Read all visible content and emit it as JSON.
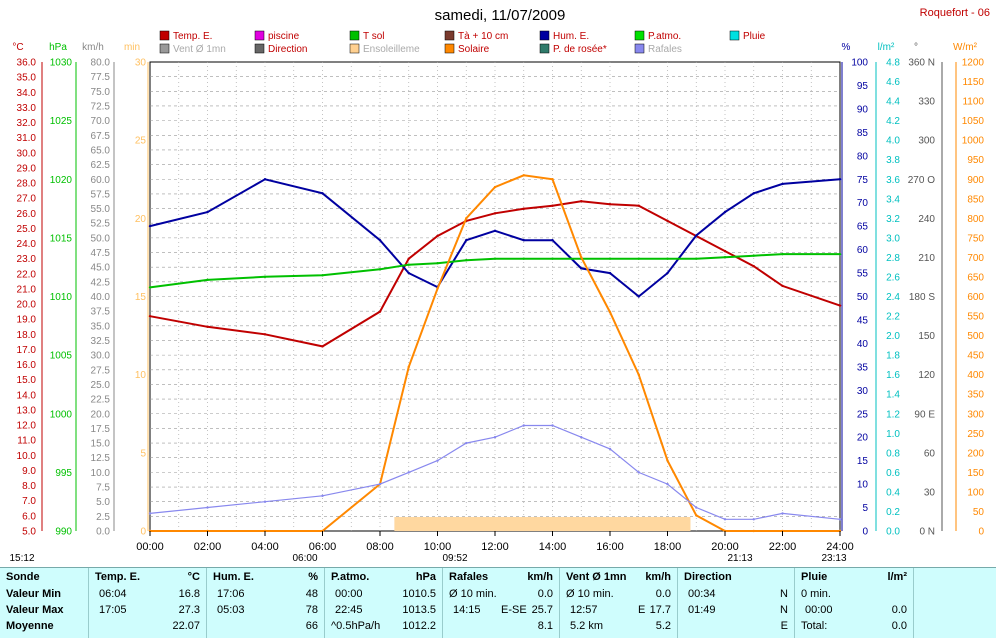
{
  "title": "samedi, 11/07/2009",
  "station": "Roquefort - 06",
  "legend": [
    {
      "label": "Temp. E.",
      "color": "#c00000"
    },
    {
      "label": "piscine",
      "color": "#e000e0"
    },
    {
      "label": "T sol",
      "color": "#00c000"
    },
    {
      "label": "Tà + 10 cm",
      "color": "#7a3b2e"
    },
    {
      "label": "Hum. E.",
      "color": "#0000a0"
    },
    {
      "label": "P.atmo.",
      "color": "#00e000"
    },
    {
      "label": "Pluie",
      "color": "#00e0e0"
    },
    {
      "label": "Vent Ø 1mn",
      "color": "#999999"
    },
    {
      "label": "Direction",
      "color": "#666666"
    },
    {
      "label": "Ensoleilleme",
      "color": "#ffd090"
    },
    {
      "label": "Solaire",
      "color": "#ff8800"
    },
    {
      "label": "P. de rosée*",
      "color": "#2f7a6a"
    },
    {
      "label": "Rafales",
      "color": "#8888ee"
    }
  ],
  "axes": {
    "temp": {
      "unit": "°C",
      "ticks": [
        "36.0",
        "35.0",
        "34.0",
        "33.0",
        "32.0",
        "31.0",
        "30.0",
        "29.0",
        "28.0",
        "27.0",
        "26.0",
        "25.0",
        "24.0",
        "23.0",
        "22.0",
        "21.0",
        "20.0",
        "19.0",
        "18.0",
        "17.0",
        "16.0",
        "15.0",
        "14.0",
        "13.0",
        "12.0",
        "11.0",
        "10.0",
        "9.0",
        "8.0",
        "7.0",
        "6.0",
        "5.0"
      ],
      "color": "#c00000"
    },
    "press": {
      "unit": "hPa",
      "ticks": [
        "1030",
        "1025",
        "1020",
        "1015",
        "1010",
        "1005",
        "1000",
        "995",
        "990"
      ],
      "color": "#00c000"
    },
    "wind": {
      "unit": "km/h",
      "ticks": [
        "80.0",
        "77.5",
        "75.0",
        "72.5",
        "70.0",
        "67.5",
        "65.0",
        "62.5",
        "60.0",
        "57.5",
        "55.0",
        "52.5",
        "50.0",
        "47.5",
        "45.0",
        "42.5",
        "40.0",
        "37.5",
        "35.0",
        "32.5",
        "30.0",
        "27.5",
        "25.0",
        "22.5",
        "20.0",
        "17.5",
        "15.0",
        "12.5",
        "10.0",
        "7.5",
        "5.0",
        "2.5",
        "0.0"
      ],
      "color": "#888888"
    },
    "min": {
      "unit": "min",
      "ticks": [
        "30",
        "25",
        "20",
        "15",
        "10",
        "5",
        "0"
      ],
      "color": "#ffc060"
    },
    "hum": {
      "unit": "%",
      "ticks": [
        "100",
        "95",
        "90",
        "85",
        "80",
        "75",
        "70",
        "65",
        "60",
        "55",
        "50",
        "45",
        "40",
        "35",
        "30",
        "25",
        "20",
        "15",
        "10",
        "5",
        "0"
      ],
      "color": "#0000a0"
    },
    "rain": {
      "unit": "l/m²",
      "ticks": [
        "4.8",
        "4.6",
        "4.4",
        "4.2",
        "4.0",
        "3.8",
        "3.6",
        "3.4",
        "3.2",
        "3.0",
        "2.8",
        "2.6",
        "2.4",
        "2.2",
        "2.0",
        "1.8",
        "1.6",
        "1.4",
        "1.2",
        "1.0",
        "0.8",
        "0.6",
        "0.4",
        "0.2",
        "0.0"
      ],
      "color": "#00c0c0"
    },
    "dir": {
      "unit": "°",
      "ticks": [
        "360 N",
        "330",
        "300",
        "270 O",
        "240",
        "210",
        "180 S",
        "150",
        "120",
        "90 E",
        "60",
        "30",
        "0 N"
      ],
      "color": "#555555"
    },
    "solar": {
      "unit": "W/m²",
      "ticks": [
        "1200",
        "1150",
        "1100",
        "1050",
        "1000",
        "950",
        "900",
        "850",
        "800",
        "750",
        "700",
        "650",
        "600",
        "550",
        "500",
        "450",
        "400",
        "350",
        "300",
        "250",
        "200",
        "150",
        "100",
        "50",
        "0"
      ],
      "color": "#ff8800"
    }
  },
  "x_ticks": [
    "00:00",
    "02:00",
    "04:00",
    "06:00",
    "08:00",
    "10:00",
    "12:00",
    "14:00",
    "16:00",
    "18:00",
    "20:00",
    "22:00",
    "24:00"
  ],
  "markers": {
    "left": "15:12",
    "sunrise": "06:00",
    "solar_noon": "09:52",
    "sunset": "21:13",
    "right": "23:13"
  },
  "chart_data": {
    "type": "line",
    "x": [
      0,
      2,
      4,
      6,
      8,
      9,
      10,
      11,
      12,
      13,
      14,
      15,
      16,
      17,
      18,
      19,
      20,
      21,
      22,
      24
    ],
    "series": [
      {
        "name": "Temp. E.",
        "axis": "temp",
        "values": [
          19.2,
          18.5,
          18.0,
          17.2,
          19.5,
          23.0,
          24.5,
          25.5,
          26.0,
          26.3,
          26.5,
          26.8,
          26.6,
          26.5,
          25.5,
          24.5,
          23.5,
          22.5,
          21.2,
          19.9
        ]
      },
      {
        "name": "Hum. E.",
        "axis": "hum",
        "values": [
          65,
          68,
          75,
          72,
          62,
          55,
          52,
          62,
          64,
          62,
          62,
          56,
          55,
          50,
          55,
          63,
          68,
          72,
          74,
          75
        ]
      },
      {
        "name": "T sol",
        "axis": "temp",
        "values": [
          21.1,
          21.6,
          21.8,
          21.9,
          22.3,
          22.6,
          22.7,
          22.9,
          23.0,
          23.0,
          23.0,
          23.0,
          23.0,
          23.0,
          23.0,
          23.0,
          23.1,
          23.2,
          23.3,
          23.3
        ]
      },
      {
        "name": "Solaire",
        "axis": "solar",
        "values": [
          0,
          0,
          0,
          0,
          120,
          420,
          620,
          800,
          880,
          910,
          900,
          700,
          560,
          400,
          180,
          40,
          0,
          0,
          0,
          0
        ]
      },
      {
        "name": "Rafales",
        "axis": "wind",
        "values": [
          3,
          4,
          5,
          6,
          8,
          10,
          12,
          15,
          16,
          18,
          18,
          16,
          14,
          10,
          8,
          4,
          2,
          2,
          3,
          2
        ]
      }
    ]
  },
  "summary": {
    "sonde": {
      "title": "Sonde",
      "rows": [
        "Valeur Min",
        "Valeur Max",
        "Moyenne"
      ]
    },
    "temp": {
      "title": "Temp. E.",
      "unit": "°C",
      "min_time": "06:04",
      "min": "16.8",
      "max_time": "17:05",
      "max": "27.3",
      "avg": "22.07"
    },
    "hum": {
      "title": "Hum. E.",
      "unit": "%",
      "min_time": "17:06",
      "min": "48",
      "max_time": "05:03",
      "max": "78",
      "avg": "66"
    },
    "press": {
      "title": "P.atmo.",
      "unit": "hPa",
      "min_time": "00:00",
      "min": "1010.5",
      "max_time": "22:45",
      "max": "1013.5",
      "avg_label": "^0.5hPa/h",
      "avg": "1012.2"
    },
    "gust": {
      "title": "Rafales",
      "unit": "km/h",
      "min_label": "Ø 10 min.",
      "min": "0.0",
      "max_time": "14:15",
      "max_dir": "E-SE",
      "max": "25.7",
      "avg": "8.1"
    },
    "wind": {
      "title": "Vent Ø 1mn",
      "unit": "km/h",
      "min_label": "Ø 10 min.",
      "min": "0.0",
      "max_time": "12:57",
      "max_dir": "E",
      "max": "17.7",
      "avg_label": "5.2 km",
      "avg": "5.2"
    },
    "dir": {
      "title": "Direction",
      "min_time": "00:34",
      "min": "N",
      "max_time": "01:49",
      "max": "N",
      "avg": "E"
    },
    "rain": {
      "title": "Pluie",
      "unit": "l/m²",
      "min_label": "0 min.",
      "max_time": "00:00",
      "max": "0.0",
      "avg_label": "Total:",
      "avg": "0.0"
    }
  }
}
